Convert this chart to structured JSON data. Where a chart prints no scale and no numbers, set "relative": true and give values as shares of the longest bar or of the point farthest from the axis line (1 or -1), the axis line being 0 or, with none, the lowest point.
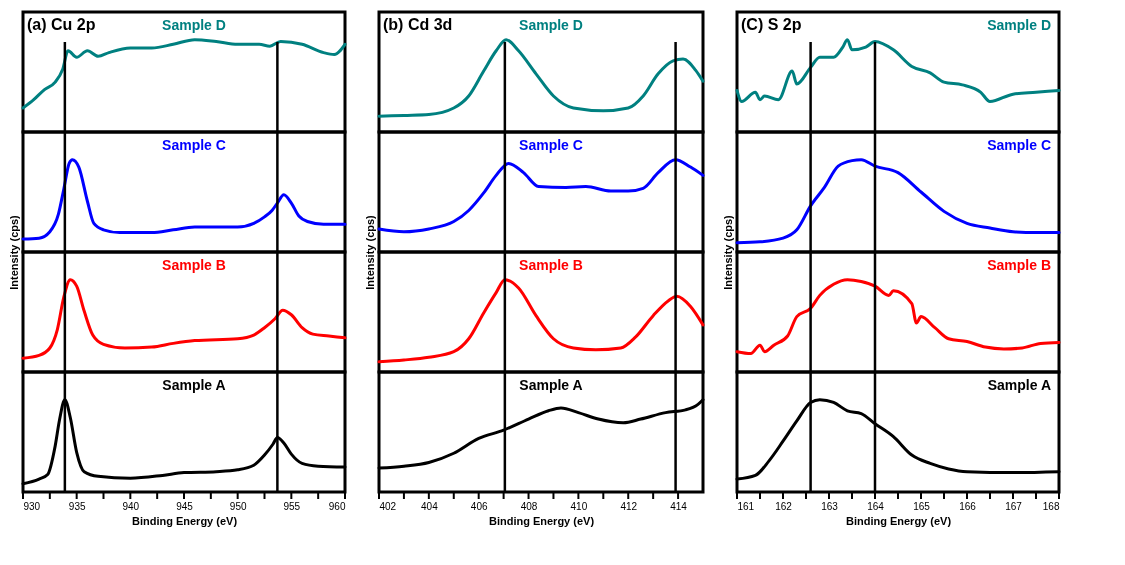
{
  "chart_data": [
    {
      "type": "line",
      "relative": true,
      "annotations": [
        "(a) Cu 2p"
      ],
      "xlim": [
        930,
        960
      ],
      "tick_labels": false,
      "ref_lines": [
        {
          "axis": "x",
          "value": 933.9
        },
        {
          "axis": "x",
          "value": 953.7
        }
      ],
      "x": [
        930,
        931,
        932,
        933,
        933.7,
        934.2,
        935,
        936,
        937,
        938,
        940,
        942,
        944,
        946,
        948,
        950,
        952,
        953,
        954,
        956,
        958,
        959,
        960
      ],
      "series": [
        {
          "name": "Sample D",
          "color": "#008080",
          "values": [
            0.26,
            0.35,
            0.46,
            0.54,
            0.68,
            0.88,
            0.81,
            0.88,
            0.82,
            0.86,
            0.91,
            0.91,
            0.95,
            1,
            0.98,
            0.95,
            0.95,
            0.93,
            0.98,
            0.95,
            0.86,
            0.84,
            0.95
          ]
        }
      ]
    },
    {
      "type": "line",
      "relative": true,
      "xlim": [
        930,
        960
      ],
      "tick_labels": false,
      "ref_lines": [
        {
          "axis": "x",
          "value": 933.9
        },
        {
          "axis": "x",
          "value": 953.7
        }
      ],
      "x": [
        930,
        931.5,
        932.5,
        933.3,
        933.8,
        934.3,
        934.6,
        935.2,
        936,
        936.6,
        937.5,
        939,
        942,
        944,
        946,
        950,
        951.5,
        952.5,
        953.2,
        953.7,
        954.3,
        955,
        955.7,
        956.5,
        958,
        960
      ],
      "series": [
        {
          "name": "Sample C",
          "color": "#0000ff",
          "values": [
            0.14,
            0.15,
            0.22,
            0.41,
            0.68,
            0.96,
            1,
            0.92,
            0.55,
            0.31,
            0.24,
            0.21,
            0.21,
            0.24,
            0.27,
            0.27,
            0.31,
            0.38,
            0.45,
            0.53,
            0.62,
            0.53,
            0.39,
            0.33,
            0.3,
            0.3
          ]
        }
      ]
    },
    {
      "type": "line",
      "relative": true,
      "ylabel": "Intensity (cps)",
      "xlim": [
        930,
        960
      ],
      "tick_labels": false,
      "ref_lines": [
        {
          "axis": "x",
          "value": 933.9
        },
        {
          "axis": "x",
          "value": 953.7
        }
      ],
      "x": [
        930,
        931.5,
        932.5,
        933.2,
        933.8,
        934.4,
        935,
        935.7,
        936.5,
        937.5,
        939.5,
        942,
        944,
        946,
        950,
        951.5,
        952.5,
        953.5,
        954.2,
        955,
        956,
        957,
        958.5,
        960
      ],
      "series": [
        {
          "name": "Sample B",
          "color": "#ff0000",
          "values": [
            0.15,
            0.18,
            0.26,
            0.46,
            0.81,
            1,
            0.93,
            0.66,
            0.4,
            0.3,
            0.26,
            0.27,
            0.31,
            0.34,
            0.36,
            0.4,
            0.48,
            0.58,
            0.67,
            0.62,
            0.48,
            0.41,
            0.39,
            0.37
          ]
        }
      ]
    },
    {
      "type": "line",
      "relative": true,
      "xlabel": "Binding Energy (eV)",
      "xlim": [
        930,
        960
      ],
      "tick_labels": "x",
      "xticks": [
        930,
        {
          "value": 932.5,
          "label": null
        },
        935,
        {
          "value": 937.5,
          "label": null
        },
        940,
        {
          "value": 942.5,
          "label": null
        },
        945,
        {
          "value": 947.5,
          "label": null
        },
        950,
        {
          "value": 952.5,
          "label": null
        },
        955,
        {
          "value": 957.5,
          "label": null
        },
        960
      ],
      "ref_lines": [
        {
          "axis": "x",
          "value": 933.9
        },
        {
          "axis": "x",
          "value": 953.7
        }
      ],
      "x": [
        930,
        931.5,
        932.3,
        933,
        933.4,
        933.9,
        934.4,
        935,
        935.7,
        937,
        940,
        943,
        945,
        948,
        950,
        951.5,
        952.5,
        953.3,
        953.7,
        954.3,
        955,
        956,
        957.5,
        960
      ],
      "series": [
        {
          "name": "Sample A",
          "color": "#000000",
          "values": [
            0.09,
            0.14,
            0.19,
            0.5,
            0.78,
            1,
            0.81,
            0.43,
            0.22,
            0.17,
            0.15,
            0.18,
            0.21,
            0.22,
            0.24,
            0.29,
            0.4,
            0.52,
            0.59,
            0.53,
            0.41,
            0.31,
            0.28,
            0.27
          ]
        }
      ]
    },
    {
      "type": "line",
      "relative": true,
      "annotations": [
        "(b) Cd 3d"
      ],
      "xlim": [
        402,
        415
      ],
      "tick_labels": false,
      "ref_lines": [
        {
          "axis": "x",
          "value": 407.05
        },
        {
          "axis": "x",
          "value": 413.9
        }
      ],
      "x": [
        402,
        403,
        404,
        405,
        405.6,
        406.2,
        406.7,
        407.1,
        407.6,
        408.3,
        409,
        409.8,
        411,
        412,
        412.6,
        413.2,
        413.8,
        414.2,
        414.7,
        415
      ],
      "series": [
        {
          "name": "Sample D",
          "color": "#008080",
          "values": [
            0.17,
            0.18,
            0.19,
            0.26,
            0.39,
            0.66,
            0.88,
            1,
            0.88,
            0.63,
            0.39,
            0.26,
            0.23,
            0.26,
            0.39,
            0.63,
            0.77,
            0.79,
            0.67,
            0.55
          ]
        }
      ]
    },
    {
      "type": "line",
      "relative": true,
      "xlim": [
        402,
        415
      ],
      "tick_labels": false,
      "ref_lines": [
        {
          "axis": "x",
          "value": 407.05
        },
        {
          "axis": "x",
          "value": 413.9
        }
      ],
      "x": [
        402,
        403,
        404,
        405,
        405.6,
        406.2,
        406.7,
        407.2,
        407.8,
        408.4,
        409.5,
        410.3,
        411.3,
        412,
        412.6,
        413.2,
        413.9,
        414.5,
        415
      ],
      "series": [
        {
          "name": "Sample C",
          "color": "#0000ff",
          "values": [
            0.25,
            0.22,
            0.25,
            0.33,
            0.45,
            0.64,
            0.83,
            0.96,
            0.86,
            0.71,
            0.7,
            0.71,
            0.66,
            0.66,
            0.69,
            0.86,
            1,
            0.92,
            0.83
          ]
        }
      ]
    },
    {
      "type": "line",
      "relative": true,
      "ylabel": "Intensity (cps)",
      "xlim": [
        402,
        415
      ],
      "tick_labels": false,
      "ref_lines": [
        {
          "axis": "x",
          "value": 407.05
        },
        {
          "axis": "x",
          "value": 413.9
        }
      ],
      "x": [
        402,
        403,
        404,
        405,
        405.6,
        406.2,
        406.7,
        407.05,
        407.6,
        408.3,
        409,
        409.8,
        410.7,
        411.7,
        412.3,
        413,
        413.6,
        413.95,
        414.5,
        415
      ],
      "series": [
        {
          "name": "Sample B",
          "color": "#ff0000",
          "values": [
            0.11,
            0.13,
            0.16,
            0.22,
            0.36,
            0.64,
            0.86,
            1,
            0.91,
            0.61,
            0.36,
            0.26,
            0.24,
            0.26,
            0.38,
            0.61,
            0.77,
            0.82,
            0.71,
            0.51
          ]
        }
      ]
    },
    {
      "type": "line",
      "relative": true,
      "xlabel": "Binding Energy (eV)",
      "xlim": [
        402,
        415
      ],
      "tick_labels": "x",
      "xticks": [
        402,
        {
          "value": 403,
          "label": null
        },
        404,
        {
          "value": 405,
          "label": null
        },
        406,
        {
          "value": 407,
          "label": null
        },
        408,
        {
          "value": 409,
          "label": null
        },
        410,
        {
          "value": 411,
          "label": null
        },
        412,
        {
          "value": 413,
          "label": null
        },
        414
      ],
      "ref_lines": [
        {
          "axis": "x",
          "value": 407.05
        },
        {
          "axis": "x",
          "value": 413.9
        }
      ],
      "x": [
        402,
        403,
        404,
        405,
        406,
        407,
        408,
        408.8,
        409.3,
        410,
        410.8,
        411.8,
        412.5,
        413.5,
        414.3,
        414.8,
        415
      ],
      "series": [
        {
          "name": "Sample A",
          "color": "#000000",
          "values": [
            0.26,
            0.28,
            0.32,
            0.42,
            0.58,
            0.67,
            0.79,
            0.88,
            0.91,
            0.86,
            0.79,
            0.75,
            0.79,
            0.86,
            0.89,
            0.95,
            1
          ]
        }
      ]
    },
    {
      "type": "line",
      "relative": true,
      "annotations": [
        "(C) S 2p"
      ],
      "xlim": [
        161,
        168
      ],
      "tick_labels": false,
      "ref_lines": [
        {
          "axis": "x",
          "value": 162.6
        },
        {
          "axis": "x",
          "value": 164.0
        }
      ],
      "x": [
        161,
        161.1,
        161.4,
        161.5,
        161.6,
        161.9,
        162.2,
        162.3,
        162.6,
        162.8,
        163.1,
        163.3,
        163.4,
        163.5,
        163.8,
        164,
        164.4,
        164.8,
        165.2,
        165.5,
        165.9,
        166.3,
        166.5,
        167,
        167.5,
        168
      ],
      "series": [
        {
          "name": "Sample D",
          "color": "#008080",
          "values": [
            0.45,
            0.33,
            0.43,
            0.35,
            0.39,
            0.35,
            0.66,
            0.52,
            0.7,
            0.81,
            0.81,
            0.92,
            1,
            0.89,
            0.92,
            0.98,
            0.89,
            0.71,
            0.64,
            0.54,
            0.51,
            0.43,
            0.33,
            0.41,
            0.43,
            0.45
          ]
        }
      ]
    },
    {
      "type": "line",
      "relative": true,
      "xlim": [
        161,
        168
      ],
      "tick_labels": false,
      "ref_lines": [
        {
          "axis": "x",
          "value": 162.6
        },
        {
          "axis": "x",
          "value": 164.0
        }
      ],
      "x": [
        161,
        161.5,
        162,
        162.3,
        162.6,
        162.9,
        163.2,
        163.5,
        163.7,
        164,
        164.5,
        165,
        165.5,
        166,
        166.5,
        167,
        167.5,
        168
      ],
      "series": [
        {
          "name": "Sample C",
          "color": "#0000ff",
          "values": [
            0.1,
            0.11,
            0.15,
            0.24,
            0.5,
            0.7,
            0.93,
            0.99,
            1,
            0.93,
            0.86,
            0.65,
            0.44,
            0.31,
            0.26,
            0.22,
            0.21,
            0.21
          ]
        }
      ]
    },
    {
      "type": "line",
      "relative": true,
      "ylabel": "Intensity (cps)",
      "xlim": [
        161,
        168
      ],
      "tick_labels": false,
      "ref_lines": [
        {
          "axis": "x",
          "value": 162.6
        },
        {
          "axis": "x",
          "value": 164.0
        }
      ],
      "x": [
        161,
        161.3,
        161.5,
        161.6,
        161.8,
        162.1,
        162.3,
        162.6,
        162.8,
        163.1,
        163.4,
        163.7,
        164,
        164.3,
        164.4,
        164.8,
        164.9,
        165,
        165.3,
        165.6,
        166,
        166.4,
        166.8,
        167.2,
        167.6,
        168
      ],
      "series": [
        {
          "name": "Sample B",
          "color": "#ff0000",
          "values": [
            0.22,
            0.2,
            0.29,
            0.22,
            0.29,
            0.39,
            0.6,
            0.69,
            0.83,
            0.95,
            1,
            0.98,
            0.93,
            0.83,
            0.88,
            0.74,
            0.53,
            0.6,
            0.48,
            0.36,
            0.33,
            0.27,
            0.25,
            0.26,
            0.31,
            0.32
          ]
        }
      ]
    },
    {
      "type": "line",
      "relative": true,
      "xlabel": "Binding Energy (eV)",
      "xlim": [
        161,
        168
      ],
      "tick_labels": "x",
      "xticks": [
        161,
        {
          "value": 161.5,
          "label": null
        },
        162,
        {
          "value": 162.5,
          "label": null
        },
        163,
        {
          "value": 163.5,
          "label": null
        },
        164,
        {
          "value": 164.5,
          "label": null
        },
        165,
        {
          "value": 165.5,
          "label": null
        },
        166,
        {
          "value": 166.5,
          "label": null
        },
        167,
        {
          "value": 167.5,
          "label": null
        },
        168
      ],
      "ref_lines": [
        {
          "axis": "x",
          "value": 162.6
        },
        {
          "axis": "x",
          "value": 164.0
        }
      ],
      "x": [
        161,
        161.4,
        161.7,
        162,
        162.3,
        162.6,
        162.8,
        163.1,
        163.4,
        163.7,
        164,
        164.4,
        164.8,
        165.2,
        165.6,
        166,
        167,
        168
      ],
      "series": [
        {
          "name": "Sample A",
          "color": "#000000",
          "values": [
            0.14,
            0.18,
            0.34,
            0.55,
            0.77,
            0.97,
            1,
            0.97,
            0.88,
            0.85,
            0.74,
            0.6,
            0.4,
            0.31,
            0.25,
            0.22,
            0.21,
            0.22
          ]
        }
      ]
    }
  ]
}
